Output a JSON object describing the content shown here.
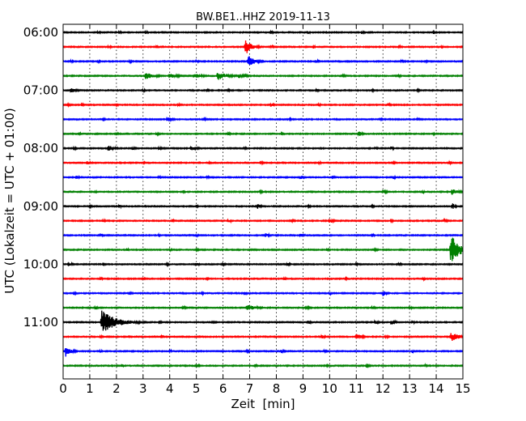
{
  "chart_data": {
    "type": "line",
    "title": "BW.BE1..HHZ 2019-11-13",
    "xlabel": "Zeit  [min]",
    "ylabel": "UTC (Lokalzeit = UTC + 01:00)",
    "xlim": [
      0,
      15
    ],
    "x_ticks": [
      "0",
      "1",
      "2",
      "3",
      "4",
      "5",
      "6",
      "7",
      "8",
      "9",
      "10",
      "11",
      "12",
      "13",
      "14",
      "15"
    ],
    "y_ticks": [
      "06:00",
      "07:00",
      "08:00",
      "09:00",
      "10:00",
      "11:00"
    ],
    "grid": "vertical dotted",
    "trace_interval_min": 15,
    "colors": [
      "#000000",
      "#ff0000",
      "#0000ff",
      "#008000"
    ],
    "series": [
      {
        "start": "06:00",
        "color": "#000000",
        "events": [
          [
            1.3,
            0.2,
            0.3
          ],
          [
            2.1,
            0.15,
            0.3
          ],
          [
            3.1,
            0.2,
            0.3
          ],
          [
            7.8,
            0.2,
            0.3
          ],
          [
            9.2,
            0.15,
            0.3
          ],
          [
            11.2,
            0.2,
            0.3
          ],
          [
            13.9,
            0.15,
            0.3
          ]
        ]
      },
      {
        "start": "06:15",
        "color": "#ff0000",
        "events": [
          [
            1.7,
            0.2,
            0.3
          ],
          [
            3.5,
            0.15,
            0.3
          ],
          [
            6.85,
            0.4,
            1.4
          ],
          [
            7.8,
            0.2,
            0.3
          ],
          [
            9.4,
            0.15,
            0.3
          ],
          [
            12.6,
            0.2,
            0.3
          ],
          [
            14.2,
            0.15,
            0.3
          ]
        ]
      },
      {
        "start": "06:30",
        "color": "#0000ff",
        "events": [
          [
            0.3,
            0.15,
            0.3
          ],
          [
            1.3,
            0.2,
            0.3
          ],
          [
            2.5,
            0.15,
            0.3
          ],
          [
            5.0,
            0.15,
            0.3
          ],
          [
            6.95,
            0.4,
            1.1
          ],
          [
            9.5,
            0.2,
            0.3
          ],
          [
            12.7,
            0.2,
            0.3
          ],
          [
            13.6,
            0.15,
            0.3
          ]
        ]
      },
      {
        "start": "06:45",
        "color": "#008000",
        "events": [
          [
            3.1,
            0.6,
            0.6
          ],
          [
            4.0,
            0.5,
            0.5
          ],
          [
            4.9,
            0.5,
            0.5
          ],
          [
            5.8,
            0.6,
            0.8
          ],
          [
            6.6,
            0.5,
            0.4
          ],
          [
            10.5,
            0.3,
            0.25
          ],
          [
            12.6,
            0.2,
            0.25
          ]
        ]
      },
      {
        "start": "07:00",
        "color": "#000000",
        "events": [
          [
            0.3,
            0.4,
            0.45
          ],
          [
            3.0,
            0.15,
            0.3
          ],
          [
            5.4,
            0.15,
            0.3
          ],
          [
            6.2,
            0.15,
            0.3
          ],
          [
            9.5,
            0.2,
            0.3
          ],
          [
            11.6,
            0.2,
            0.3
          ],
          [
            13.3,
            0.15,
            0.3
          ]
        ]
      },
      {
        "start": "07:15",
        "color": "#ff0000",
        "events": [
          [
            0.2,
            0.2,
            0.3
          ],
          [
            0.7,
            0.15,
            0.3
          ],
          [
            2.0,
            0.15,
            0.3
          ],
          [
            4.3,
            0.15,
            0.3
          ],
          [
            7.8,
            0.2,
            0.4
          ],
          [
            9.6,
            0.15,
            0.3
          ],
          [
            12.2,
            0.2,
            0.3
          ]
        ]
      },
      {
        "start": "07:30",
        "color": "#0000ff",
        "events": [
          [
            1.5,
            0.15,
            0.3
          ],
          [
            3.9,
            0.4,
            0.35
          ],
          [
            5.3,
            0.15,
            0.3
          ],
          [
            8.5,
            0.2,
            0.3
          ],
          [
            11.9,
            0.15,
            0.3
          ],
          [
            13.3,
            0.15,
            0.3
          ]
        ]
      },
      {
        "start": "07:45",
        "color": "#008000",
        "events": [
          [
            0.6,
            0.15,
            0.3
          ],
          [
            2.0,
            0.15,
            0.3
          ],
          [
            3.5,
            0.2,
            0.3
          ],
          [
            6.2,
            0.15,
            0.3
          ],
          [
            8.2,
            0.15,
            0.3
          ],
          [
            11.1,
            0.25,
            0.5
          ],
          [
            13.9,
            0.15,
            0.3
          ]
        ]
      },
      {
        "start": "08:00",
        "color": "#000000",
        "events": [
          [
            0.4,
            0.2,
            0.35
          ],
          [
            1.7,
            0.4,
            0.55
          ],
          [
            2.6,
            0.2,
            0.35
          ],
          [
            3.6,
            0.2,
            0.35
          ],
          [
            4.8,
            0.5,
            0.35
          ],
          [
            6.8,
            0.15,
            0.3
          ],
          [
            11.7,
            0.2,
            0.35
          ],
          [
            12.3,
            0.2,
            0.35
          ]
        ]
      },
      {
        "start": "08:15",
        "color": "#ff0000",
        "events": [
          [
            0.9,
            0.3,
            0.35
          ],
          [
            3.0,
            0.15,
            0.3
          ],
          [
            5.5,
            0.15,
            0.3
          ],
          [
            7.4,
            0.2,
            0.3
          ],
          [
            9.6,
            0.15,
            0.3
          ],
          [
            12.4,
            0.15,
            0.3
          ],
          [
            14.5,
            0.15,
            0.3
          ]
        ]
      },
      {
        "start": "08:30",
        "color": "#0000ff",
        "events": [
          [
            0.5,
            0.2,
            0.35
          ],
          [
            3.6,
            0.15,
            0.3
          ],
          [
            5.4,
            0.15,
            0.3
          ],
          [
            8.9,
            0.25,
            0.35
          ],
          [
            10.1,
            0.2,
            0.3
          ],
          [
            12.4,
            0.15,
            0.3
          ]
        ]
      },
      {
        "start": "08:45",
        "color": "#008000",
        "events": [
          [
            1.2,
            0.15,
            0.3
          ],
          [
            4.5,
            0.15,
            0.3
          ],
          [
            7.4,
            0.15,
            0.3
          ],
          [
            12.0,
            0.25,
            0.4
          ],
          [
            13.5,
            0.15,
            0.3
          ],
          [
            14.6,
            0.4,
            0.6
          ]
        ]
      },
      {
        "start": "09:00",
        "color": "#000000",
        "events": [
          [
            1.0,
            0.15,
            0.3
          ],
          [
            2.1,
            0.2,
            0.3
          ],
          [
            5.0,
            0.15,
            0.3
          ],
          [
            7.3,
            0.2,
            0.5
          ],
          [
            9.2,
            0.15,
            0.3
          ],
          [
            11.6,
            0.15,
            0.3
          ],
          [
            14.6,
            0.2,
            0.6
          ]
        ]
      },
      {
        "start": "09:15",
        "color": "#ff0000",
        "events": [
          [
            1.5,
            0.15,
            0.3
          ],
          [
            4.1,
            0.15,
            0.3
          ],
          [
            6.2,
            0.25,
            0.35
          ],
          [
            8.6,
            0.15,
            0.3
          ],
          [
            10.0,
            0.2,
            0.55
          ],
          [
            12.3,
            0.15,
            0.3
          ],
          [
            14.3,
            0.2,
            0.3
          ]
        ]
      },
      {
        "start": "09:30",
        "color": "#0000ff",
        "events": [
          [
            1.4,
            0.2,
            0.35
          ],
          [
            3.6,
            0.15,
            0.3
          ],
          [
            5.0,
            0.15,
            0.3
          ],
          [
            7.6,
            0.3,
            0.35
          ],
          [
            8.9,
            0.25,
            0.4
          ],
          [
            11.6,
            0.15,
            0.3
          ]
        ]
      },
      {
        "start": "09:45",
        "color": "#008000",
        "events": [
          [
            2.4,
            0.15,
            0.3
          ],
          [
            4.0,
            0.15,
            0.3
          ],
          [
            5.0,
            0.15,
            0.3
          ],
          [
            9.9,
            0.15,
            0.3
          ],
          [
            11.7,
            0.2,
            0.3
          ],
          [
            14.55,
            0.5,
            2.8
          ]
        ]
      },
      {
        "start": "10:00",
        "color": "#000000",
        "events": [
          [
            0.2,
            0.3,
            0.35
          ],
          [
            1.5,
            0.15,
            0.3
          ],
          [
            3.9,
            0.15,
            0.3
          ],
          [
            5.0,
            0.2,
            0.35
          ],
          [
            6.0,
            0.15,
            0.3
          ],
          [
            8.4,
            0.2,
            0.35
          ],
          [
            11.0,
            0.15,
            0.3
          ],
          [
            12.6,
            0.15,
            0.3
          ]
        ]
      },
      {
        "start": "10:15",
        "color": "#ff0000",
        "events": [
          [
            1.4,
            0.15,
            0.3
          ],
          [
            3.0,
            0.15,
            0.3
          ],
          [
            5.4,
            0.15,
            0.3
          ],
          [
            8.3,
            0.15,
            0.3
          ],
          [
            10.6,
            0.15,
            0.3
          ],
          [
            13.5,
            0.15,
            0.3
          ]
        ]
      },
      {
        "start": "10:30",
        "color": "#0000ff",
        "events": [
          [
            0.4,
            0.15,
            0.3
          ],
          [
            2.5,
            0.15,
            0.3
          ],
          [
            5.2,
            0.15,
            0.3
          ],
          [
            6.8,
            0.2,
            0.3
          ],
          [
            10.0,
            0.15,
            0.3
          ],
          [
            12.0,
            0.2,
            0.6
          ]
        ]
      },
      {
        "start": "10:45",
        "color": "#008000",
        "events": [
          [
            1.2,
            0.2,
            0.35
          ],
          [
            4.5,
            0.2,
            0.3
          ],
          [
            6.9,
            0.6,
            0.55
          ],
          [
            9.1,
            0.3,
            0.3
          ],
          [
            11.6,
            0.2,
            0.3
          ],
          [
            13.0,
            0.15,
            0.3
          ]
        ]
      },
      {
        "start": "11:00",
        "color": "#000000",
        "events": [
          [
            1.45,
            0.9,
            2.1
          ],
          [
            3.6,
            0.2,
            0.3
          ],
          [
            5.6,
            0.15,
            0.3
          ],
          [
            9.2,
            0.2,
            0.35
          ],
          [
            11.7,
            0.25,
            0.35
          ],
          [
            12.3,
            0.3,
            0.45
          ],
          [
            13.1,
            0.2,
            0.3
          ]
        ]
      },
      {
        "start": "11:15",
        "color": "#ff0000",
        "events": [
          [
            1.4,
            0.2,
            0.3
          ],
          [
            3.7,
            0.15,
            0.3
          ],
          [
            9.7,
            0.2,
            0.4
          ],
          [
            11.0,
            0.35,
            0.6
          ],
          [
            12.1,
            0.2,
            0.3
          ],
          [
            14.55,
            0.5,
            0.9
          ]
        ]
      },
      {
        "start": "11:30",
        "color": "#0000ff",
        "events": [
          [
            0.1,
            0.3,
            1.1
          ],
          [
            1.4,
            0.15,
            0.3
          ],
          [
            4.0,
            0.15,
            0.3
          ],
          [
            6.9,
            0.15,
            0.3
          ],
          [
            8.2,
            0.2,
            0.35
          ],
          [
            9.8,
            0.15,
            0.3
          ],
          [
            13.1,
            0.15,
            0.3
          ]
        ]
      },
      {
        "start": "11:45",
        "color": "#008000",
        "events": [
          [
            2.2,
            0.15,
            0.3
          ],
          [
            5.0,
            0.2,
            0.35
          ],
          [
            7.2,
            0.15,
            0.3
          ],
          [
            9.9,
            0.15,
            0.3
          ],
          [
            11.4,
            0.2,
            0.35
          ],
          [
            13.6,
            0.15,
            0.3
          ]
        ]
      }
    ]
  }
}
